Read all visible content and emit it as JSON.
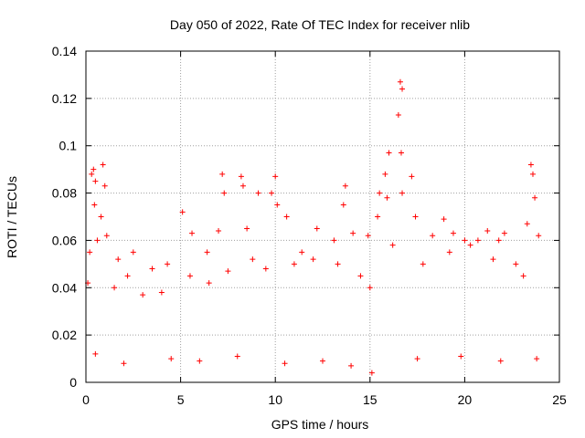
{
  "chart_data": {
    "type": "scatter",
    "title": "Day 050 of 2022, Rate Of TEC Index for receiver nlib",
    "xlabel": "GPS time / hours",
    "ylabel": "ROTI / TECUs",
    "xlim": [
      0,
      25
    ],
    "ylim": [
      0,
      0.14
    ],
    "xticks": [
      0,
      5,
      10,
      15,
      20,
      25
    ],
    "xtick_labels": [
      "0",
      "5",
      "10",
      "15",
      "20",
      "25"
    ],
    "yticks": [
      0,
      0.02,
      0.04,
      0.06,
      0.08,
      0.1,
      0.12,
      0.14
    ],
    "ytick_labels": [
      "0",
      "0.02",
      "0.04",
      "0.06",
      "0.08",
      "0.1",
      "0.12",
      "0.14"
    ],
    "grid": true,
    "marker": "+",
    "color": "#ff0000",
    "series": [
      {
        "name": "ROTI",
        "points": [
          [
            0.3,
            0.088
          ],
          [
            0.4,
            0.09
          ],
          [
            0.5,
            0.085
          ],
          [
            0.9,
            0.092
          ],
          [
            1.0,
            0.083
          ],
          [
            0.45,
            0.075
          ],
          [
            0.8,
            0.07
          ],
          [
            0.2,
            0.055
          ],
          [
            0.6,
            0.06
          ],
          [
            1.1,
            0.062
          ],
          [
            1.7,
            0.052
          ],
          [
            2.5,
            0.055
          ],
          [
            2.2,
            0.045
          ],
          [
            3.5,
            0.048
          ],
          [
            4.3,
            0.05
          ],
          [
            5.1,
            0.072
          ],
          [
            5.6,
            0.063
          ],
          [
            6.4,
            0.055
          ],
          [
            7.0,
            0.064
          ],
          [
            7.2,
            0.088
          ],
          [
            7.3,
            0.08
          ],
          [
            8.2,
            0.087
          ],
          [
            8.3,
            0.083
          ],
          [
            8.5,
            0.065
          ],
          [
            9.1,
            0.08
          ],
          [
            9.8,
            0.08
          ],
          [
            10.0,
            0.087
          ],
          [
            10.1,
            0.075
          ],
          [
            10.6,
            0.07
          ],
          [
            11.4,
            0.055
          ],
          [
            12.2,
            0.065
          ],
          [
            13.1,
            0.06
          ],
          [
            13.7,
            0.083
          ],
          [
            13.6,
            0.075
          ],
          [
            14.1,
            0.063
          ],
          [
            14.9,
            0.062
          ],
          [
            15.4,
            0.07
          ],
          [
            15.5,
            0.08
          ],
          [
            15.8,
            0.088
          ],
          [
            15.9,
            0.078
          ],
          [
            16.0,
            0.097
          ],
          [
            16.5,
            0.113
          ],
          [
            16.6,
            0.127
          ],
          [
            16.7,
            0.124
          ],
          [
            16.65,
            0.097
          ],
          [
            16.7,
            0.08
          ],
          [
            17.2,
            0.087
          ],
          [
            17.4,
            0.07
          ],
          [
            18.3,
            0.062
          ],
          [
            18.9,
            0.069
          ],
          [
            19.4,
            0.063
          ],
          [
            20.0,
            0.06
          ],
          [
            20.7,
            0.06
          ],
          [
            21.2,
            0.064
          ],
          [
            21.8,
            0.06
          ],
          [
            22.1,
            0.063
          ],
          [
            23.3,
            0.067
          ],
          [
            23.5,
            0.092
          ],
          [
            23.6,
            0.088
          ],
          [
            23.7,
            0.078
          ],
          [
            23.9,
            0.062
          ],
          [
            0.1,
            0.042
          ],
          [
            1.5,
            0.04
          ],
          [
            3.0,
            0.037
          ],
          [
            4.0,
            0.038
          ],
          [
            5.5,
            0.045
          ],
          [
            6.5,
            0.042
          ],
          [
            7.5,
            0.047
          ],
          [
            8.8,
            0.052
          ],
          [
            9.5,
            0.048
          ],
          [
            11.0,
            0.05
          ],
          [
            12.0,
            0.052
          ],
          [
            13.3,
            0.05
          ],
          [
            14.5,
            0.045
          ],
          [
            15.0,
            0.04
          ],
          [
            16.2,
            0.058
          ],
          [
            17.8,
            0.05
          ],
          [
            19.2,
            0.055
          ],
          [
            20.3,
            0.058
          ],
          [
            21.5,
            0.052
          ],
          [
            22.7,
            0.05
          ],
          [
            23.1,
            0.045
          ],
          [
            0.5,
            0.012
          ],
          [
            2.0,
            0.008
          ],
          [
            4.5,
            0.01
          ],
          [
            6.0,
            0.009
          ],
          [
            8.0,
            0.011
          ],
          [
            10.5,
            0.008
          ],
          [
            12.5,
            0.009
          ],
          [
            14.0,
            0.007
          ],
          [
            15.1,
            0.004
          ],
          [
            17.5,
            0.01
          ],
          [
            19.8,
            0.011
          ],
          [
            21.9,
            0.009
          ],
          [
            23.8,
            0.01
          ]
        ]
      }
    ]
  }
}
